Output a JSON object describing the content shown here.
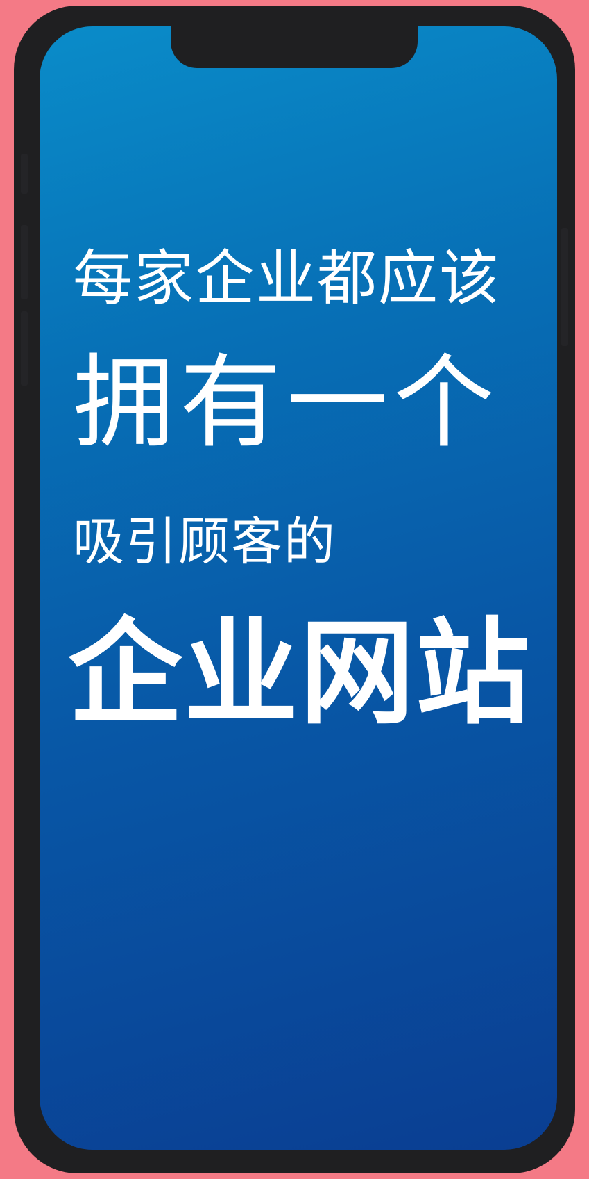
{
  "headline": {
    "line1": "每家企业都应该",
    "line2": "拥有一个",
    "line3": "吸引顾客的",
    "line4": "企业网站"
  },
  "colors": {
    "background": "#f47a86",
    "phone_frame": "#1f1f21",
    "screen_top": "#0a8cc9",
    "screen_bottom": "#0a3e92",
    "text": "#ffffff"
  }
}
